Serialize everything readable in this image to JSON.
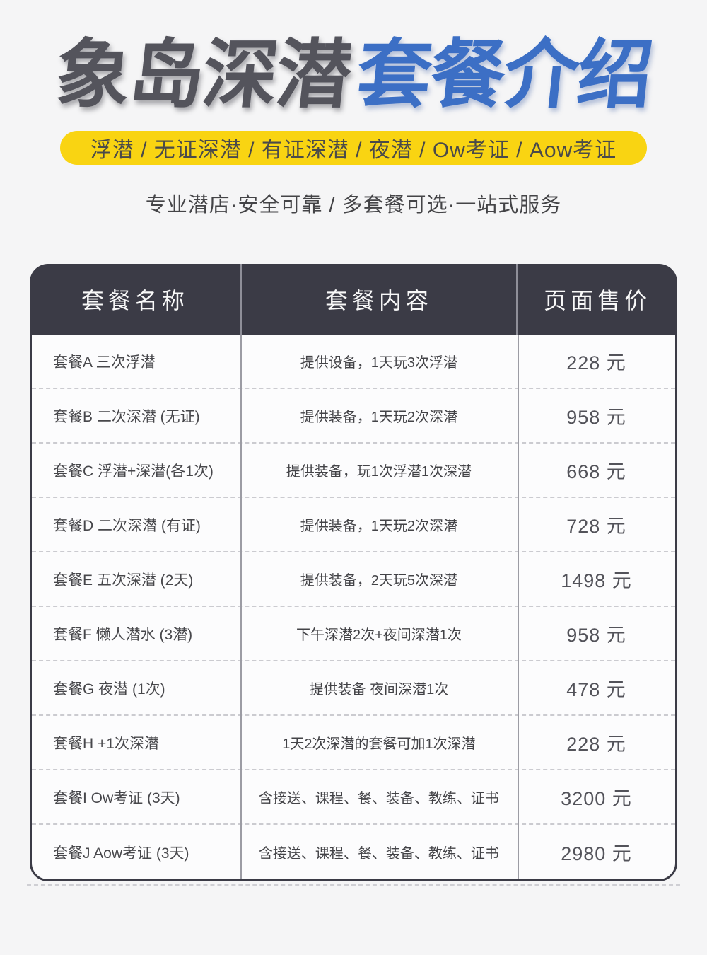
{
  "header": {
    "title_dark": "象岛深潜",
    "title_blue": "套餐介绍",
    "banner": "浮潜 / 无证深潜 / 有证深潜 / 夜潜 / Ow考证 / Aow考证",
    "subtitle": "专业潜店·安全可靠 / 多套餐可选·一站式服务"
  },
  "colors": {
    "page_bg": "#f5f5f6",
    "title_dark": "#54545c",
    "title_blue": "#3c6fc5",
    "banner_bg": "#f9d412",
    "table_header_bg": "#3b3b46",
    "table_border": "#3b3b46",
    "divider": "#9c9ca4",
    "dashed_separator": "#cbcbd0"
  },
  "table": {
    "headers": [
      "套餐名称",
      "套餐内容",
      "页面售价"
    ],
    "rows": [
      {
        "name": "套餐A 三次浮潜",
        "content": "提供设备，1天玩3次浮潜",
        "price": "228 元"
      },
      {
        "name": "套餐B 二次深潜 (无证)",
        "content": "提供装备，1天玩2次深潜",
        "price": "958 元"
      },
      {
        "name": "套餐C 浮潜+深潜(各1次)",
        "content": "提供装备，玩1次浮潜1次深潜",
        "price": "668 元"
      },
      {
        "name": "套餐D 二次深潜 (有证)",
        "content": "提供装备，1天玩2次深潜",
        "price": "728 元"
      },
      {
        "name": "套餐E 五次深潜 (2天)",
        "content": "提供装备，2天玩5次深潜",
        "price": "1498 元"
      },
      {
        "name": "套餐F 懒人潜水 (3潜)",
        "content": "下午深潜2次+夜间深潜1次",
        "price": "958 元"
      },
      {
        "name": "套餐G 夜潜 (1次)",
        "content": "提供装备 夜间深潜1次",
        "price": "478 元"
      },
      {
        "name": "套餐H +1次深潜",
        "content": "1天2次深潜的套餐可加1次深潜",
        "price": "228 元"
      },
      {
        "name": "套餐I  Ow考证  (3天)",
        "content": "含接送、课程、餐、装备、教练、证书",
        "price": "3200 元"
      },
      {
        "name": "套餐J Aow考证  (3天)",
        "content": "含接送、课程、餐、装备、教练、证书",
        "price": "2980 元"
      }
    ]
  }
}
